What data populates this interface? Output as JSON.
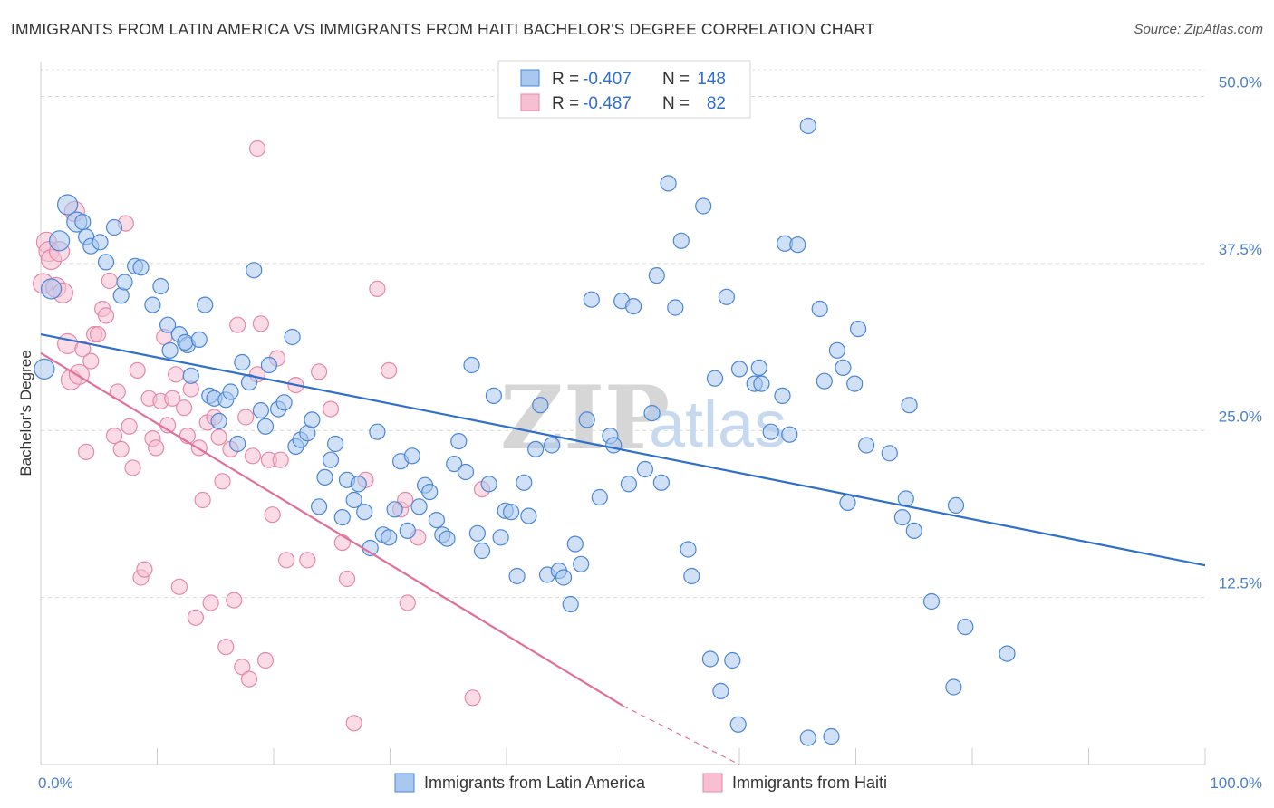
{
  "title": "IMMIGRANTS FROM LATIN AMERICA VS IMMIGRANTS FROM HAITI BACHELOR'S DEGREE CORRELATION CHART",
  "source": "Source: ZipAtlas.com",
  "watermark": {
    "zip": "ZIP",
    "atlas": "atlas"
  },
  "colors": {
    "blue_fill": "#a9c8f0",
    "blue_stroke": "#4a86d6",
    "blue_line": "#2f6fcc",
    "pink_fill": "#f7bfd2",
    "pink_stroke": "#e589a8",
    "pink_line": "#e0709a",
    "grid": "#d9d9d9",
    "tick_text": "#4a7fc8"
  },
  "stats": [
    {
      "series": "Immigrants from Latin America",
      "r_label": "R =",
      "r": "-0.407",
      "n_label": "N =",
      "n": "148"
    },
    {
      "series": "Immigrants from Haiti",
      "r_label": "R =",
      "r": "-0.487",
      "n_label": "N =",
      "n": "82"
    }
  ],
  "chart_data": {
    "type": "scatter",
    "title": "IMMIGRANTS FROM LATIN AMERICA VS IMMIGRANTS FROM HAITI BACHELOR'S DEGREE CORRELATION CHART",
    "xlabel": "",
    "ylabel": "Bachelor's Degree",
    "xlim": [
      0,
      100
    ],
    "ylim": [
      0,
      52
    ],
    "x_tick_labels": [
      {
        "value": 0,
        "label": "0.0%"
      },
      {
        "value": 100,
        "label": "100.0%"
      }
    ],
    "y_tick_labels": [
      {
        "value": 12.5,
        "label": "12.5%"
      },
      {
        "value": 25,
        "label": "25.0%"
      },
      {
        "value": 37.5,
        "label": "37.5%"
      },
      {
        "value": 50,
        "label": "50.0%"
      }
    ],
    "legend": [
      "Immigrants from Latin America",
      "Immigrants from Haiti"
    ],
    "series": [
      {
        "name": "Immigrants from Latin America",
        "color": "#a9c8f0",
        "trend": {
          "x0": 0,
          "y0": 32.2,
          "x1": 100,
          "y1": 14.9
        },
        "points": [
          [
            0.3,
            29.6
          ],
          [
            0.9,
            35.6
          ],
          [
            1.6,
            39.2
          ],
          [
            2.3,
            41.9
          ],
          [
            3.1,
            40.6
          ],
          [
            3.6,
            40.6
          ],
          [
            3.9,
            39.5
          ],
          [
            4.3,
            38.8
          ],
          [
            5.1,
            39.1
          ],
          [
            5.6,
            37.6
          ],
          [
            6.3,
            40.2
          ],
          [
            6.9,
            35.1
          ],
          [
            7.2,
            36.1
          ],
          [
            8.1,
            37.3
          ],
          [
            8.6,
            37.2
          ],
          [
            9.6,
            34.4
          ],
          [
            10.3,
            35.8
          ],
          [
            10.9,
            32.9
          ],
          [
            11.1,
            31.0
          ],
          [
            11.9,
            32.2
          ],
          [
            12.6,
            31.4
          ],
          [
            12.4,
            31.6
          ],
          [
            12.9,
            29.1
          ],
          [
            13.6,
            31.8
          ],
          [
            14.1,
            34.4
          ],
          [
            14.5,
            27.6
          ],
          [
            14.9,
            27.4
          ],
          [
            15.3,
            25.7
          ],
          [
            15.9,
            27.3
          ],
          [
            16.3,
            27.9
          ],
          [
            16.9,
            24.0
          ],
          [
            17.3,
            30.1
          ],
          [
            17.9,
            28.6
          ],
          [
            18.3,
            37.0
          ],
          [
            18.9,
            26.5
          ],
          [
            19.3,
            25.3
          ],
          [
            19.6,
            29.9
          ],
          [
            20.4,
            26.6
          ],
          [
            20.9,
            27.1
          ],
          [
            21.6,
            32.0
          ],
          [
            21.9,
            23.8
          ],
          [
            22.3,
            24.3
          ],
          [
            22.9,
            24.8
          ],
          [
            23.3,
            25.8
          ],
          [
            23.9,
            19.3
          ],
          [
            24.4,
            21.5
          ],
          [
            24.9,
            22.8
          ],
          [
            25.3,
            24.0
          ],
          [
            25.9,
            18.5
          ],
          [
            26.3,
            21.3
          ],
          [
            26.9,
            19.8
          ],
          [
            27.3,
            21.0
          ],
          [
            27.8,
            18.9
          ],
          [
            28.3,
            16.2
          ],
          [
            28.9,
            24.9
          ],
          [
            29.4,
            17.2
          ],
          [
            29.9,
            17.0
          ],
          [
            30.4,
            19.1
          ],
          [
            30.9,
            22.7
          ],
          [
            31.5,
            17.5
          ],
          [
            31.9,
            23.1
          ],
          [
            32.5,
            19.3
          ],
          [
            33.0,
            20.9
          ],
          [
            33.4,
            20.4
          ],
          [
            34.0,
            18.3
          ],
          [
            34.5,
            17.2
          ],
          [
            34.9,
            16.9
          ],
          [
            35.5,
            22.5
          ],
          [
            35.9,
            24.2
          ],
          [
            36.5,
            21.9
          ],
          [
            37.0,
            29.9
          ],
          [
            37.5,
            17.3
          ],
          [
            37.9,
            16.0
          ],
          [
            38.5,
            21.0
          ],
          [
            38.9,
            27.6
          ],
          [
            39.5,
            17.0
          ],
          [
            39.9,
            19.0
          ],
          [
            40.4,
            18.9
          ],
          [
            40.9,
            14.1
          ],
          [
            41.5,
            21.1
          ],
          [
            41.9,
            18.6
          ],
          [
            42.5,
            23.6
          ],
          [
            42.9,
            26.9
          ],
          [
            43.5,
            14.2
          ],
          [
            43.9,
            23.9
          ],
          [
            44.5,
            14.5
          ],
          [
            44.9,
            14.0
          ],
          [
            45.5,
            12.0
          ],
          [
            45.9,
            16.5
          ],
          [
            46.4,
            15.0
          ],
          [
            46.9,
            25.8
          ],
          [
            47.3,
            34.8
          ],
          [
            48.0,
            20.0
          ],
          [
            48.9,
            24.6
          ],
          [
            49.2,
            23.9
          ],
          [
            49.9,
            34.7
          ],
          [
            50.5,
            21.0
          ],
          [
            50.9,
            34.3
          ],
          [
            51.9,
            22.1
          ],
          [
            52.5,
            26.3
          ],
          [
            52.9,
            36.6
          ],
          [
            53.3,
            21.1
          ],
          [
            53.9,
            43.5
          ],
          [
            54.5,
            34.2
          ],
          [
            55.0,
            39.2
          ],
          [
            55.6,
            16.1
          ],
          [
            55.9,
            14.1
          ],
          [
            56.9,
            41.8
          ],
          [
            57.5,
            7.9
          ],
          [
            57.9,
            28.9
          ],
          [
            58.9,
            35.0
          ],
          [
            58.4,
            5.5
          ],
          [
            59.4,
            7.8
          ],
          [
            59.9,
            3.0
          ],
          [
            60.0,
            29.6
          ],
          [
            61.3,
            28.5
          ],
          [
            61.7,
            29.7
          ],
          [
            61.9,
            28.5
          ],
          [
            62.7,
            24.9
          ],
          [
            63.7,
            27.6
          ],
          [
            63.9,
            39.0
          ],
          [
            64.3,
            24.7
          ],
          [
            65.0,
            38.9
          ],
          [
            65.9,
            2.0
          ],
          [
            65.9,
            47.8
          ],
          [
            66.9,
            34.1
          ],
          [
            67.3,
            28.7
          ],
          [
            67.9,
            2.1
          ],
          [
            68.4,
            31.0
          ],
          [
            68.9,
            29.7
          ],
          [
            69.3,
            19.6
          ],
          [
            69.9,
            28.5
          ],
          [
            70.2,
            32.6
          ],
          [
            70.9,
            23.9
          ],
          [
            72.9,
            23.3
          ],
          [
            74.0,
            18.5
          ],
          [
            74.3,
            19.9
          ],
          [
            74.6,
            26.9
          ],
          [
            75.0,
            17.5
          ],
          [
            76.5,
            12.2
          ],
          [
            78.4,
            5.8
          ],
          [
            79.4,
            10.3
          ],
          [
            78.6,
            19.4
          ],
          [
            83.0,
            8.3
          ]
        ]
      },
      {
        "name": "Immigrants from Haiti",
        "color": "#f7bfd2",
        "trend": {
          "x0": 0,
          "y0": 30.8,
          "x1": 50,
          "y1": 4.4,
          "dashed_to": {
            "x": 60,
            "y": -0.9
          }
        },
        "points": [
          [
            0.2,
            36.0
          ],
          [
            0.5,
            39.1
          ],
          [
            0.7,
            38.4
          ],
          [
            0.9,
            37.8
          ],
          [
            1.3,
            35.7
          ],
          [
            1.6,
            38.4
          ],
          [
            1.9,
            35.3
          ],
          [
            2.3,
            31.5
          ],
          [
            2.6,
            28.8
          ],
          [
            2.9,
            41.4
          ],
          [
            3.3,
            29.2
          ],
          [
            3.6,
            31.1
          ],
          [
            3.9,
            23.4
          ],
          [
            4.3,
            30.2
          ],
          [
            4.6,
            32.2
          ],
          [
            4.9,
            32.2
          ],
          [
            5.3,
            34.1
          ],
          [
            5.6,
            33.6
          ],
          [
            5.9,
            36.2
          ],
          [
            6.3,
            24.6
          ],
          [
            6.6,
            27.9
          ],
          [
            6.9,
            23.6
          ],
          [
            7.3,
            40.5
          ],
          [
            7.6,
            25.3
          ],
          [
            7.9,
            22.2
          ],
          [
            8.3,
            29.5
          ],
          [
            8.6,
            14.0
          ],
          [
            8.9,
            14.6
          ],
          [
            9.3,
            27.4
          ],
          [
            9.6,
            24.4
          ],
          [
            9.9,
            23.7
          ],
          [
            10.3,
            27.2
          ],
          [
            10.6,
            32.0
          ],
          [
            10.9,
            25.4
          ],
          [
            11.3,
            27.4
          ],
          [
            11.6,
            29.2
          ],
          [
            11.9,
            13.3
          ],
          [
            12.3,
            26.7
          ],
          [
            12.6,
            24.6
          ],
          [
            12.9,
            28.1
          ],
          [
            13.3,
            11.0
          ],
          [
            13.6,
            23.7
          ],
          [
            13.9,
            19.8
          ],
          [
            14.3,
            25.6
          ],
          [
            14.6,
            12.1
          ],
          [
            14.9,
            26.0
          ],
          [
            15.3,
            24.5
          ],
          [
            15.6,
            21.2
          ],
          [
            15.9,
            8.8
          ],
          [
            16.3,
            23.6
          ],
          [
            16.6,
            12.3
          ],
          [
            16.9,
            32.9
          ],
          [
            17.3,
            7.3
          ],
          [
            17.6,
            26.0
          ],
          [
            17.9,
            6.4
          ],
          [
            18.2,
            23.1
          ],
          [
            18.6,
            29.2
          ],
          [
            18.9,
            33.0
          ],
          [
            19.3,
            7.8
          ],
          [
            19.6,
            22.8
          ],
          [
            19.9,
            18.7
          ],
          [
            20.3,
            30.4
          ],
          [
            20.6,
            22.8
          ],
          [
            21.1,
            15.3
          ],
          [
            21.9,
            28.4
          ],
          [
            22.9,
            15.3
          ],
          [
            23.9,
            29.4
          ],
          [
            24.9,
            26.6
          ],
          [
            25.9,
            16.6
          ],
          [
            26.3,
            13.9
          ],
          [
            26.9,
            3.1
          ],
          [
            27.9,
            21.3
          ],
          [
            28.9,
            35.6
          ],
          [
            29.9,
            29.5
          ],
          [
            30.9,
            19.1
          ],
          [
            31.3,
            19.8
          ],
          [
            31.5,
            12.1
          ],
          [
            32.4,
            17.0
          ],
          [
            37.1,
            5.0
          ],
          [
            37.9,
            20.6
          ],
          [
            18.6,
            46.1
          ]
        ]
      }
    ]
  }
}
